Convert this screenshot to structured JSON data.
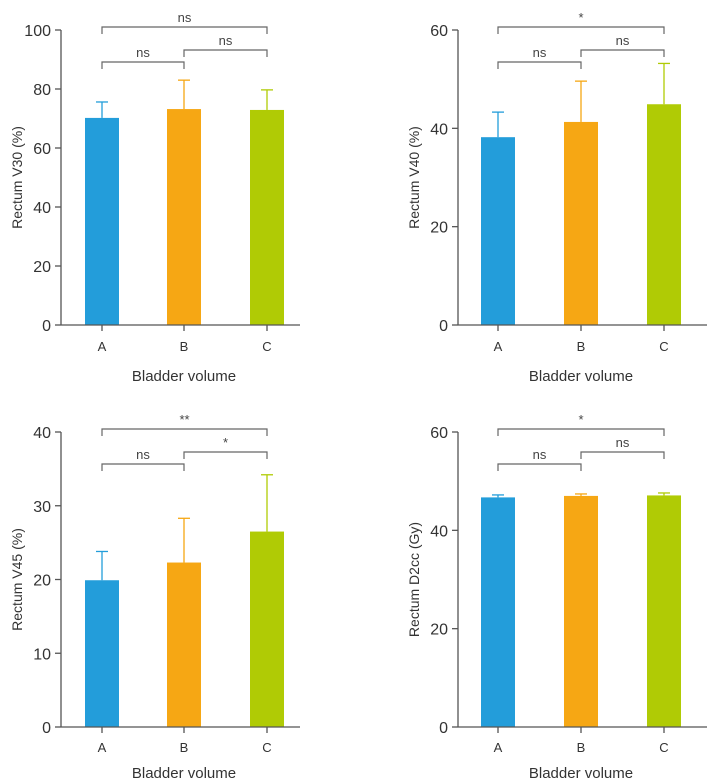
{
  "chart_data": [
    {
      "type": "bar",
      "title": "",
      "xlabel": "Bladder volume",
      "ylabel": "Rectum V30 (%)",
      "categories": [
        "A",
        "B",
        "C"
      ],
      "values": [
        70.2,
        73.2,
        72.9
      ],
      "error_upper": [
        75.6,
        83.0,
        79.7
      ],
      "ylim": [
        0,
        100
      ],
      "yticks": [
        "0",
        "20",
        "40",
        "60",
        "80",
        "100"
      ],
      "colors": [
        "#239dda",
        "#f6a714",
        "#b0cb05"
      ],
      "significance": [
        {
          "pair": [
            "A",
            "B"
          ],
          "label": "ns"
        },
        {
          "pair": [
            "B",
            "C"
          ],
          "label": "ns"
        },
        {
          "pair": [
            "A",
            "C"
          ],
          "label": "ns"
        }
      ]
    },
    {
      "type": "bar",
      "title": "",
      "xlabel": "Bladder volume",
      "ylabel": "Rectum V40 (%)",
      "categories": [
        "A",
        "B",
        "C"
      ],
      "values": [
        38.2,
        41.3,
        44.9
      ],
      "error_upper": [
        43.3,
        49.6,
        53.2
      ],
      "ylim": [
        0,
        60
      ],
      "yticks": [
        "0",
        "20",
        "40",
        "60"
      ],
      "colors": [
        "#239dda",
        "#f6a714",
        "#b0cb05"
      ],
      "significance": [
        {
          "pair": [
            "A",
            "B"
          ],
          "label": "ns"
        },
        {
          "pair": [
            "B",
            "C"
          ],
          "label": "ns"
        },
        {
          "pair": [
            "A",
            "C"
          ],
          "label": "*"
        }
      ]
    },
    {
      "type": "bar",
      "title": "",
      "xlabel": "Bladder volume",
      "ylabel": "Rectum V45 (%)",
      "categories": [
        "A",
        "B",
        "C"
      ],
      "values": [
        19.9,
        22.3,
        26.5
      ],
      "error_upper": [
        23.8,
        28.3,
        34.2
      ],
      "ylim": [
        0,
        40
      ],
      "yticks": [
        "0",
        "10",
        "20",
        "30",
        "40"
      ],
      "colors": [
        "#239dda",
        "#f6a714",
        "#b0cb05"
      ],
      "significance": [
        {
          "pair": [
            "A",
            "B"
          ],
          "label": "ns"
        },
        {
          "pair": [
            "B",
            "C"
          ],
          "label": "*"
        },
        {
          "pair": [
            "A",
            "C"
          ],
          "label": "**"
        }
      ]
    },
    {
      "type": "bar",
      "title": "",
      "xlabel": "Bladder volume",
      "ylabel": "Rectum D2cc (Gy)",
      "categories": [
        "A",
        "B",
        "C"
      ],
      "values": [
        46.7,
        47.0,
        47.1
      ],
      "error_upper": [
        47.2,
        47.4,
        47.6
      ],
      "ylim": [
        0,
        60
      ],
      "yticks": [
        "0",
        "20",
        "40",
        "60"
      ],
      "colors": [
        "#239dda",
        "#f6a714",
        "#b0cb05"
      ],
      "significance": [
        {
          "pair": [
            "A",
            "B"
          ],
          "label": "ns"
        },
        {
          "pair": [
            "B",
            "C"
          ],
          "label": "ns"
        },
        {
          "pair": [
            "A",
            "C"
          ],
          "label": "*"
        }
      ]
    }
  ]
}
